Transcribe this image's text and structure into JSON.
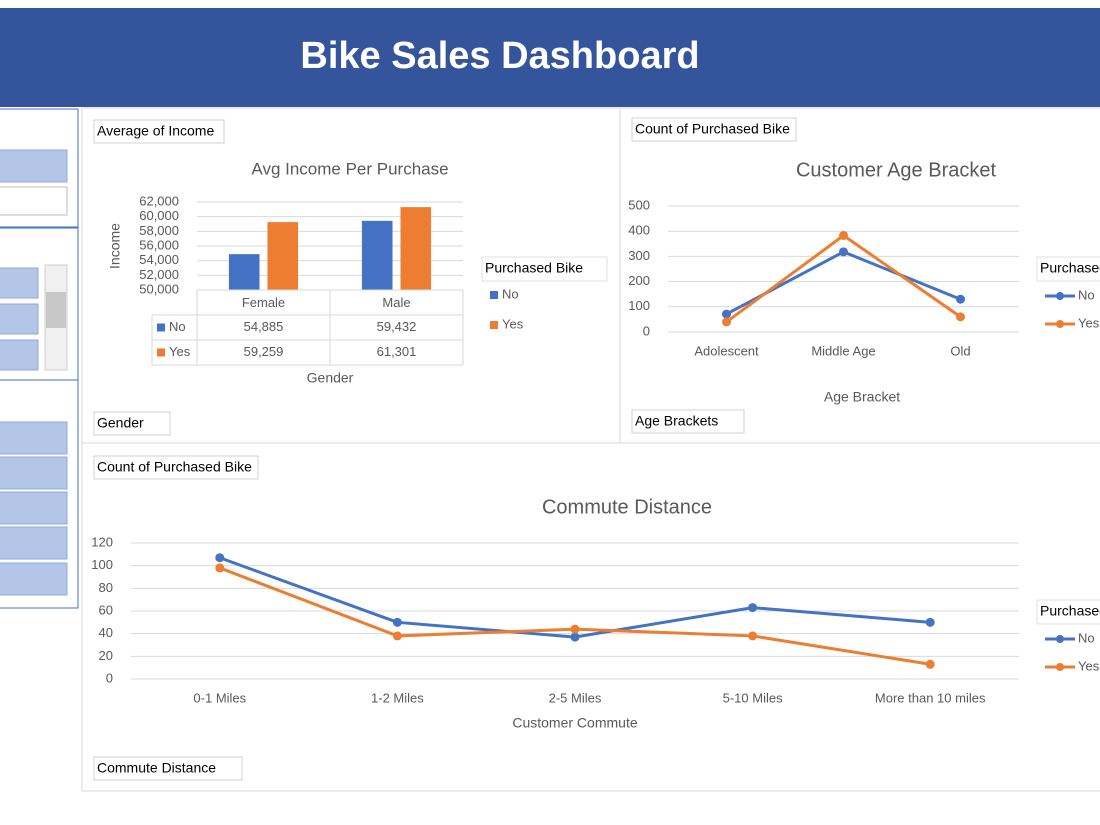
{
  "header": {
    "title": "Bike Sales Dashboard"
  },
  "chart_data": [
    {
      "type": "bar",
      "title": "Avg Income Per Purchase",
      "value_field": "Average of Income",
      "axis_field": "Gender",
      "y_label": "Income",
      "x_label": "Gender",
      "legend_title": "Purchased Bike",
      "categories": [
        "Female",
        "Male"
      ],
      "series": [
        {
          "name": "No",
          "color": "#4472c4",
          "values": [
            54885,
            59432
          ],
          "value_labels": [
            "54,885",
            "59,432"
          ]
        },
        {
          "name": "Yes",
          "color": "#ed7d31",
          "values": [
            59259,
            61301
          ],
          "value_labels": [
            "59,259",
            "61,301"
          ]
        }
      ],
      "ylim": [
        50000,
        62000
      ],
      "yticks": [
        {
          "value": 50000,
          "label": "50,000"
        },
        {
          "value": 52000,
          "label": "52,000"
        },
        {
          "value": 54000,
          "label": "54,000"
        },
        {
          "value": 56000,
          "label": "56,000"
        },
        {
          "value": 58000,
          "label": "58,000"
        },
        {
          "value": 60000,
          "label": "60,000"
        },
        {
          "value": 62000,
          "label": "62,000"
        }
      ],
      "grid": true
    },
    {
      "type": "line",
      "title": "Customer Age Bracket",
      "value_field": "Count of Purchased Bike",
      "axis_field": "Age Brackets",
      "x_label": "Age Bracket",
      "legend_title": "Purchased Bike",
      "categories": [
        "Adolescent",
        "Middle Age",
        "Old"
      ],
      "series": [
        {
          "name": "No",
          "color": "#4472c4",
          "values": [
            71,
            318,
            130
          ]
        },
        {
          "name": "Yes",
          "color": "#ed7d31",
          "values": [
            40,
            383,
            60
          ]
        }
      ],
      "ylim": [
        0,
        500
      ],
      "yticks": [
        0,
        100,
        200,
        300,
        400,
        500
      ],
      "grid": true
    },
    {
      "type": "line",
      "title": "Commute Distance",
      "value_field": "Count of Purchased Bike",
      "axis_field": "Commute Distance",
      "x_label": "Customer Commute",
      "legend_title": "Purchased Bike",
      "categories": [
        "0-1 Miles",
        "1-2 Miles",
        "2-5 Miles",
        "5-10 Miles",
        "More than 10 miles"
      ],
      "series": [
        {
          "name": "No",
          "color": "#4472c4",
          "values": [
            107,
            50,
            37,
            63,
            50
          ]
        },
        {
          "name": "Yes",
          "color": "#ed7d31",
          "values": [
            98,
            38,
            44,
            38,
            13
          ]
        }
      ],
      "ylim": [
        0,
        120
      ],
      "yticks": [
        0,
        20,
        40,
        60,
        80,
        100,
        120
      ],
      "grid": true
    }
  ]
}
